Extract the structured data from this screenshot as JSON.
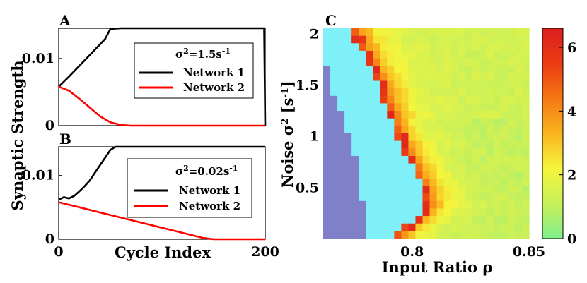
{
  "figure": {
    "shared_ylabel": "Synaptic Strength",
    "shared_xlabel": "Cycle Index"
  },
  "chart_data": [
    {
      "panel": "A",
      "type": "line",
      "xlim": [
        0,
        200
      ],
      "ylim": [
        0,
        0.0145
      ],
      "xticks": [],
      "yticks": [
        "0.01",
        "0"
      ],
      "ytick_values": [
        0.01,
        0
      ],
      "legend_title_base": "σ",
      "legend_title_sup": "2",
      "legend_title_rest": "=1.5s",
      "legend_title_unit_sup": "-1",
      "legend": "right",
      "series": [
        {
          "name": "Network 1",
          "color": "#000000",
          "x": [
            0,
            10,
            20,
            30,
            40,
            45,
            50,
            60,
            80,
            100,
            120,
            140,
            160,
            180,
            198,
            199,
            200
          ],
          "y": [
            0.0058,
            0.0073,
            0.0089,
            0.0105,
            0.0121,
            0.0129,
            0.0144,
            0.0145,
            0.0145,
            0.0145,
            0.0145,
            0.0145,
            0.0145,
            0.0145,
            0.0145,
            0.0145,
            0.0
          ]
        },
        {
          "name": "Network 2",
          "color": "#ff0000",
          "x": [
            0,
            10,
            20,
            30,
            40,
            50,
            60,
            70,
            80,
            100,
            120,
            140,
            160,
            180,
            200
          ],
          "y": [
            0.0058,
            0.0052,
            0.004,
            0.0027,
            0.0014,
            0.0005,
            0.0001,
            0.0,
            0.0,
            0.0,
            0.0,
            0.0,
            0.0,
            0.0,
            0.0
          ]
        }
      ]
    },
    {
      "panel": "B",
      "type": "line",
      "xlim": [
        0,
        200
      ],
      "ylim": [
        0,
        0.0145
      ],
      "xticks": [
        "0",
        "200"
      ],
      "xtick_values": [
        0,
        200
      ],
      "yticks": [
        "0.01",
        "0"
      ],
      "ytick_values": [
        0.01,
        0
      ],
      "legend_title_base": "σ",
      "legend_title_sup": "2",
      "legend_title_rest": "=0.02s",
      "legend_title_unit_sup": "-1",
      "legend": "right",
      "series": [
        {
          "name": "Network 1",
          "color": "#000000",
          "x": [
            0,
            5,
            10,
            15,
            20,
            25,
            30,
            35,
            40,
            45,
            50,
            55,
            60,
            80,
            100,
            120,
            140,
            160,
            180,
            200
          ],
          "y": [
            0.0062,
            0.0066,
            0.0064,
            0.0068,
            0.0075,
            0.0083,
            0.0092,
            0.0104,
            0.0116,
            0.0128,
            0.014,
            0.0145,
            0.0145,
            0.0145,
            0.0145,
            0.0145,
            0.0145,
            0.0145,
            0.0145,
            0.0145
          ]
        },
        {
          "name": "Network 2",
          "color": "#ff0000",
          "x": [
            0,
            20,
            40,
            60,
            80,
            100,
            120,
            140,
            150,
            160,
            180,
            200
          ],
          "y": [
            0.0058,
            0.005,
            0.0042,
            0.0034,
            0.0026,
            0.0018,
            0.001,
            0.0002,
            0.0,
            0.0,
            0.0,
            0.0
          ]
        }
      ]
    },
    {
      "panel": "C",
      "type": "heatmap",
      "xlabel_base": "Input Ratio ",
      "xlabel_greek": "ρ",
      "ylabel_base": "Noise σ",
      "ylabel_sup": "2",
      "ylabel_unit": " [s",
      "ylabel_unit_sup": "-1",
      "ylabel_close": "]",
      "xlim": [
        0.762,
        0.85
      ],
      "ylim": [
        0,
        2.05
      ],
      "xticks": [
        "0.8",
        "0.85"
      ],
      "xtick_values": [
        0.8,
        0.85
      ],
      "yticks": [
        "2",
        "1.5",
        "1",
        "0.5"
      ],
      "ytick_values": [
        2,
        1.5,
        1,
        0.5
      ],
      "grid": false,
      "colorbar": {
        "range": [
          0,
          6.6
        ],
        "ticks": [
          "6",
          "4",
          "2",
          "0"
        ],
        "tick_values": [
          6,
          4,
          2,
          0
        ],
        "colors": [
          "#7ff08c",
          "#c8f05a",
          "#f5f53c",
          "#fab41e",
          "#f57814",
          "#eb3c14",
          "#dc1e1e"
        ],
        "floor_color": "#8080c8",
        "gap_color": "#80f0f8"
      },
      "grid_size": {
        "cols": 29,
        "rows": 28
      },
      "boundaries": {
        "purple_edge": [
          {
            "y": 0.0,
            "x": 0.779
          },
          {
            "y": 0.3,
            "x": 0.779
          },
          {
            "y": 0.5,
            "x": 0.778
          },
          {
            "y": 0.75,
            "x": 0.776
          },
          {
            "y": 1.0,
            "x": 0.773
          },
          {
            "y": 1.25,
            "x": 0.769
          },
          {
            "y": 1.5,
            "x": 0.765
          },
          {
            "y": 1.65,
            "x": 0.764
          },
          {
            "y": 1.66,
            "x": 0.762
          }
        ],
        "cyan_edge": [
          {
            "y": 0.0,
            "x": 0.791
          },
          {
            "y": 0.3,
            "x": 0.806
          },
          {
            "y": 0.5,
            "x": 0.804
          },
          {
            "y": 0.75,
            "x": 0.799
          },
          {
            "y": 1.0,
            "x": 0.793
          },
          {
            "y": 1.25,
            "x": 0.789
          },
          {
            "y": 1.5,
            "x": 0.785
          },
          {
            "y": 1.75,
            "x": 0.78
          },
          {
            "y": 2.0,
            "x": 0.774
          }
        ]
      }
    }
  ]
}
